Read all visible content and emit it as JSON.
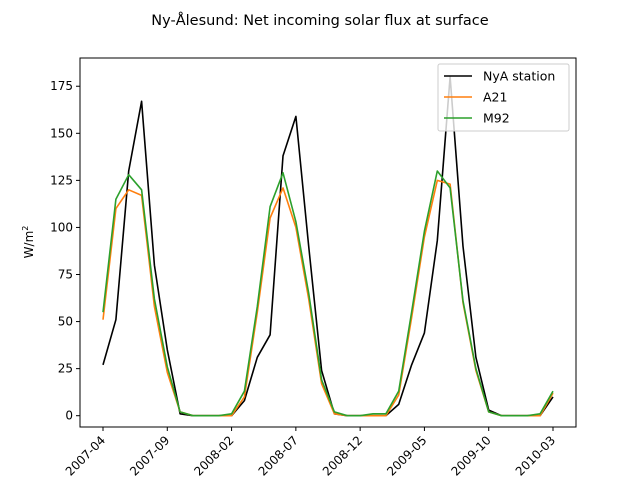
{
  "chart_data": {
    "type": "line",
    "title": "Ny-Ålesund: Net incoming solar flux at surface",
    "ylabel": "W/m",
    "ylabel_superscript": "2",
    "xlabel": "",
    "ylim": [
      -6,
      190
    ],
    "yticks": [
      0,
      25,
      50,
      75,
      100,
      125,
      150,
      175
    ],
    "xticks": [
      "2007-04",
      "2007-09",
      "2008-02",
      "2008-07",
      "2008-12",
      "2009-05",
      "2009-10",
      "2010-03"
    ],
    "grid": false,
    "legend_position": "top-right",
    "x": [
      "2007-04",
      "2007-05",
      "2007-06",
      "2007-07",
      "2007-08",
      "2007-09",
      "2007-10",
      "2007-11",
      "2007-12",
      "2008-01",
      "2008-02",
      "2008-03",
      "2008-04",
      "2008-05",
      "2008-06",
      "2008-07",
      "2008-08",
      "2008-09",
      "2008-10",
      "2008-11",
      "2008-12",
      "2009-01",
      "2009-02",
      "2009-03",
      "2009-04",
      "2009-05",
      "2009-06",
      "2009-07",
      "2009-08",
      "2009-09",
      "2009-10",
      "2009-11",
      "2009-12",
      "2010-01",
      "2010-02",
      "2010-03"
    ],
    "series": [
      {
        "name": "NyA station",
        "color": "#000000",
        "values": [
          27,
          51,
          130,
          167,
          80,
          35,
          1,
          0,
          0,
          0,
          0,
          8,
          31,
          43,
          138,
          159,
          90,
          24,
          1,
          0,
          0,
          0,
          0,
          6,
          27,
          44,
          93,
          180,
          90,
          31,
          3,
          0,
          0,
          0,
          0,
          10
        ]
      },
      {
        "name": "A21",
        "color": "#ff7f0e",
        "values": [
          51,
          110,
          120,
          117,
          58,
          23,
          2,
          0,
          0,
          0,
          0,
          10,
          55,
          105,
          121,
          100,
          62,
          17,
          1,
          0,
          0,
          0,
          0,
          11,
          52,
          95,
          125,
          123,
          60,
          24,
          2,
          0,
          0,
          0,
          0,
          12
        ]
      },
      {
        "name": "M92",
        "color": "#2ca02c",
        "values": [
          55,
          115,
          128,
          120,
          62,
          26,
          2,
          0,
          0,
          0,
          1,
          13,
          58,
          111,
          129,
          103,
          65,
          19,
          2,
          0,
          0,
          1,
          1,
          13,
          55,
          98,
          130,
          121,
          61,
          25,
          2,
          0,
          0,
          0,
          1,
          13
        ]
      }
    ]
  }
}
